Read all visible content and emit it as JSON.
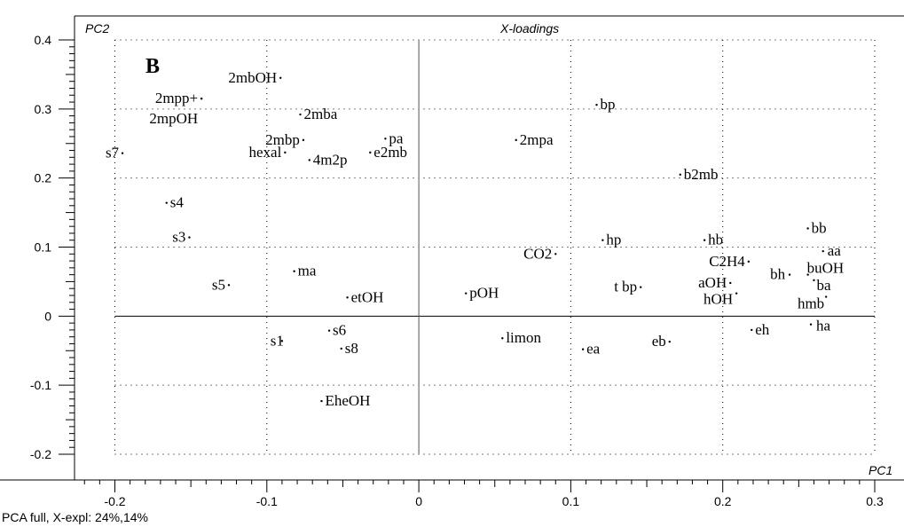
{
  "panel_label": "B",
  "footer_text": "PCA full, X-expl: 24%,14%",
  "chart_data": {
    "type": "scatter",
    "title": "X-loadings",
    "xlabel": "PC1",
    "ylabel": "PC2",
    "xlim": [
      -0.2,
      0.3
    ],
    "ylim": [
      -0.2,
      0.4
    ],
    "x_ticks": [
      "-0.2",
      "-0.1",
      "0",
      "0.1",
      "0.2",
      "0.3"
    ],
    "y_ticks": [
      "-0.2",
      "-0.1",
      "0",
      "0.1",
      "0.2",
      "0.3",
      "0.4"
    ],
    "grid": "dotted",
    "points": [
      {
        "label": "2mbOH",
        "x": -0.091,
        "y": 0.345
      },
      {
        "label": "2mpp+",
        "x": -0.143,
        "y": 0.315
      },
      {
        "label": "2mpOH",
        "x": -0.143,
        "y": 0.315
      },
      {
        "label": "2mba",
        "x": -0.078,
        "y": 0.292
      },
      {
        "label": "2mbp",
        "x": -0.076,
        "y": 0.255
      },
      {
        "label": "hexal",
        "x": -0.088,
        "y": 0.237
      },
      {
        "label": "4m2p",
        "x": -0.072,
        "y": 0.226
      },
      {
        "label": "pa",
        "x": -0.022,
        "y": 0.257
      },
      {
        "label": "e2mb",
        "x": -0.032,
        "y": 0.237
      },
      {
        "label": "s7",
        "x": -0.195,
        "y": 0.236
      },
      {
        "label": "s4",
        "x": -0.166,
        "y": 0.164
      },
      {
        "label": "s3",
        "x": -0.151,
        "y": 0.114
      },
      {
        "label": "s5",
        "x": -0.125,
        "y": 0.045
      },
      {
        "label": "ma",
        "x": -0.082,
        "y": 0.065
      },
      {
        "label": "etOH",
        "x": -0.047,
        "y": 0.027
      },
      {
        "label": "s1",
        "x": -0.09,
        "y": -0.036
      },
      {
        "label": "s6",
        "x": -0.059,
        "y": -0.021
      },
      {
        "label": "s8",
        "x": -0.051,
        "y": -0.047
      },
      {
        "label": "EheOH",
        "x": -0.064,
        "y": -0.123
      },
      {
        "label": "2mpa",
        "x": 0.064,
        "y": 0.255
      },
      {
        "label": "bp",
        "x": 0.117,
        "y": 0.306
      },
      {
        "label": "b2mb",
        "x": 0.172,
        "y": 0.205
      },
      {
        "label": "pOH",
        "x": 0.031,
        "y": 0.033
      },
      {
        "label": "CO2",
        "x": 0.09,
        "y": 0.09
      },
      {
        "label": "limon",
        "x": 0.055,
        "y": -0.032
      },
      {
        "label": "ea",
        "x": 0.108,
        "y": -0.048
      },
      {
        "label": "hp",
        "x": 0.121,
        "y": 0.11
      },
      {
        "label": "t bp",
        "x": 0.146,
        "y": 0.042
      },
      {
        "label": "eb",
        "x": 0.165,
        "y": -0.037
      },
      {
        "label": "hb",
        "x": 0.188,
        "y": 0.11
      },
      {
        "label": "C2H4",
        "x": 0.217,
        "y": 0.079
      },
      {
        "label": "aOH",
        "x": 0.205,
        "y": 0.048
      },
      {
        "label": "hOH",
        "x": 0.209,
        "y": 0.033
      },
      {
        "label": "eh",
        "x": 0.219,
        "y": -0.02
      },
      {
        "label": "bb",
        "x": 0.256,
        "y": 0.127
      },
      {
        "label": "aa",
        "x": 0.266,
        "y": 0.094
      },
      {
        "label": "bh",
        "x": 0.244,
        "y": 0.06
      },
      {
        "label": "buOH",
        "x": 0.256,
        "y": 0.06
      },
      {
        "label": "ba",
        "x": 0.26,
        "y": 0.052
      },
      {
        "label": "hmb",
        "x": 0.268,
        "y": 0.028
      },
      {
        "label": "ha",
        "x": 0.258,
        "y": -0.012
      }
    ]
  }
}
